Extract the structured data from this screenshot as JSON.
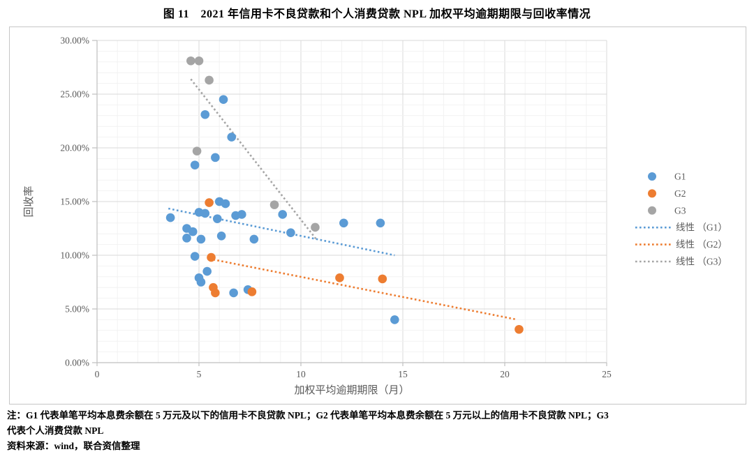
{
  "title": "图 11　2021 年信用卡不良贷款和个人消费贷款 NPL 加权平均逾期期限与回收率情况",
  "notes": {
    "line1": "注：G1 代表单笔平均本息费余额在 5 万元及以下的信用卡不良贷款 NPL；G2 代表单笔平均本息费余额在 5 万元以上的信用卡不良贷款 NPL；G3",
    "line2": "代表个人消费贷款 NPL",
    "line3": "资料来源：wind，联合资信整理"
  },
  "colors": {
    "g1": "#5B9BD5",
    "g2": "#ED7D31",
    "g3": "#A5A5A5",
    "grid_minor": "#F2F2F2",
    "grid_major": "#D9D9D9",
    "axis": "#BFBFBF",
    "tick_text": "#595959"
  },
  "chart_data": {
    "type": "scatter",
    "title": "",
    "xlabel": "加权平均逾期期限（月）",
    "ylabel": "回收率",
    "xlim": [
      0,
      25
    ],
    "ylim_percent": [
      0,
      30
    ],
    "x_ticks": [
      "0",
      "5",
      "10",
      "15",
      "20",
      "25"
    ],
    "y_ticks": [
      "0.00%",
      "5.00%",
      "10.00%",
      "15.00%",
      "20.00%",
      "25.00%",
      "30.00%"
    ],
    "grid": "on",
    "legend_position": "right",
    "legend": [
      {
        "kind": "dot",
        "label": "G1",
        "color": "#5B9BD5"
      },
      {
        "kind": "dot",
        "label": "G2",
        "color": "#ED7D31"
      },
      {
        "kind": "dot",
        "label": "G3",
        "color": "#A5A5A5"
      },
      {
        "kind": "line",
        "label": "线性 （G1）",
        "color": "#5B9BD5"
      },
      {
        "kind": "line",
        "label": "线性 （G2）",
        "color": "#ED7D31"
      },
      {
        "kind": "line",
        "label": "线性 （G3）",
        "color": "#A5A5A5"
      }
    ],
    "series": [
      {
        "name": "G1",
        "color": "#5B9BD5",
        "points": [
          [
            3.6,
            13.5
          ],
          [
            4.4,
            12.5
          ],
          [
            4.7,
            12.2
          ],
          [
            4.4,
            11.6
          ],
          [
            5.1,
            11.5
          ],
          [
            6.1,
            11.8
          ],
          [
            7.7,
            11.5
          ],
          [
            4.8,
            18.4
          ],
          [
            4.8,
            9.9
          ],
          [
            5.3,
            23.1
          ],
          [
            6.2,
            24.5
          ],
          [
            6.6,
            21.0
          ],
          [
            5.8,
            19.1
          ],
          [
            5.0,
            14.0
          ],
          [
            5.3,
            13.9
          ],
          [
            5.9,
            13.4
          ],
          [
            6.8,
            13.7
          ],
          [
            7.1,
            13.8
          ],
          [
            6.0,
            15.0
          ],
          [
            6.3,
            14.8
          ],
          [
            5.4,
            8.5
          ],
          [
            5.0,
            7.9
          ],
          [
            5.1,
            7.5
          ],
          [
            6.7,
            6.5
          ],
          [
            7.4,
            6.8
          ],
          [
            9.1,
            13.8
          ],
          [
            9.5,
            12.1
          ],
          [
            12.1,
            13.0
          ],
          [
            13.9,
            13.0
          ],
          [
            14.6,
            4.0
          ]
        ]
      },
      {
        "name": "G2",
        "color": "#ED7D31",
        "points": [
          [
            5.5,
            14.9
          ],
          [
            5.6,
            9.8
          ],
          [
            5.7,
            7.0
          ],
          [
            5.8,
            6.5
          ],
          [
            7.6,
            6.6
          ],
          [
            11.9,
            7.9
          ],
          [
            14.0,
            7.8
          ],
          [
            20.7,
            3.1
          ]
        ]
      },
      {
        "name": "G3",
        "color": "#A5A5A5",
        "points": [
          [
            4.6,
            28.1
          ],
          [
            5.0,
            28.1
          ],
          [
            5.5,
            26.3
          ],
          [
            4.9,
            19.7
          ],
          [
            8.7,
            14.7
          ],
          [
            10.7,
            12.6
          ]
        ]
      }
    ],
    "trendlines": [
      {
        "name": "线性 （G1）",
        "color": "#5B9BD5",
        "from": [
          3.5,
          14.35
        ],
        "to": [
          14.6,
          10.0
        ]
      },
      {
        "name": "线性 （G2）",
        "color": "#ED7D31",
        "from": [
          5.7,
          9.6
        ],
        "to": [
          20.5,
          4.05
        ]
      },
      {
        "name": "线性 （G3）",
        "color": "#A5A5A5",
        "from": [
          4.6,
          26.4
        ],
        "to": [
          10.75,
          11.5
        ]
      }
    ]
  }
}
